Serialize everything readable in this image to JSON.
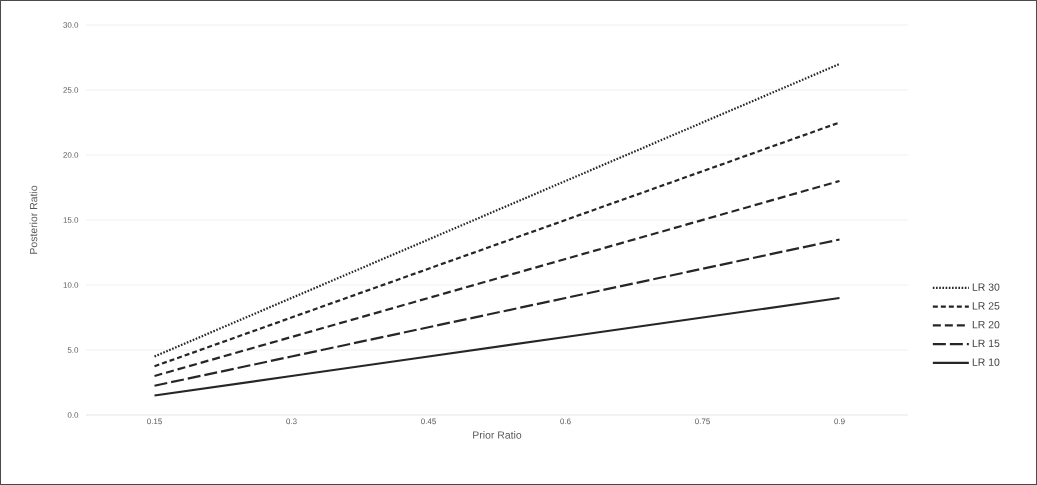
{
  "chart_data": {
    "type": "line",
    "xlabel": "Prior Ratio",
    "ylabel": "Posterior Ratio",
    "categories": [
      "0.15",
      "0.3",
      "0.45",
      "0.6",
      "0.75",
      "0.9"
    ],
    "series": [
      {
        "name": "LR 30",
        "color": "#262626",
        "line_style": "dotted",
        "values": [
          4.5,
          9,
          13.5,
          18,
          22.5,
          27
        ]
      },
      {
        "name": "LR 25",
        "color": "#262626",
        "line_style": "dashed",
        "values": [
          3.75,
          7.5,
          11.25,
          15,
          18.75,
          22.5
        ]
      },
      {
        "name": "LR 20",
        "color": "#262626",
        "line_style": "dashed",
        "values": [
          3,
          6,
          9,
          12,
          15,
          18
        ]
      },
      {
        "name": "LR 15",
        "color": "#262626",
        "line_style": "dashed",
        "values": [
          2.25,
          4.5,
          6.75,
          9,
          11.25,
          13.5
        ]
      },
      {
        "name": "LR 10",
        "color": "#262626",
        "line_style": "solid",
        "values": [
          1.5,
          3,
          4.5,
          6,
          7.5,
          9
        ]
      }
    ],
    "ylim": [
      0,
      30
    ],
    "yticks": [
      {
        "value": 0,
        "label": "0.0"
      },
      {
        "value": 5,
        "label": "5.0"
      },
      {
        "value": 10,
        "label": "10.0"
      },
      {
        "value": 15,
        "label": "15.0"
      },
      {
        "value": 20,
        "label": "20.0"
      },
      {
        "value": 25,
        "label": "25.0"
      },
      {
        "value": 30,
        "label": "30.0"
      }
    ],
    "grid": "y",
    "legend": "right",
    "marker": "none"
  }
}
